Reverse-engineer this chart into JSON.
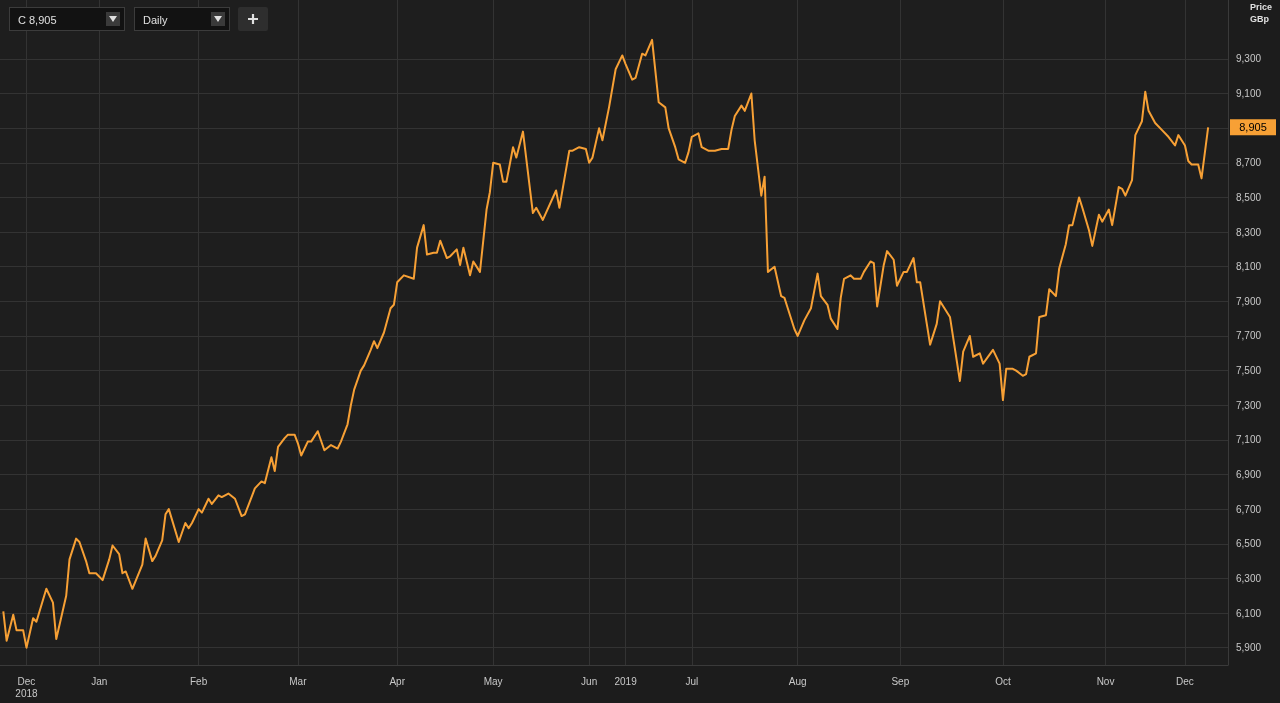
{
  "chart_data": {
    "type": "line",
    "ylabel": "Price\nGBp",
    "grid": true,
    "marker": "none",
    "xlim": [
      "2018-12-17",
      "2019-12-23"
    ],
    "xticks": [
      {
        "value": "2018-12-25",
        "label": "Dec\n2018"
      },
      {
        "value": "2019-01-16",
        "label": "Jan"
      },
      {
        "value": "2019-02-15",
        "label": "Feb"
      },
      {
        "value": "2019-03-17",
        "label": "Mar"
      },
      {
        "value": "2019-04-16",
        "label": "Apr"
      },
      {
        "value": "2019-05-15",
        "label": "May"
      },
      {
        "value": "2019-06-13",
        "label": "Jun"
      },
      {
        "value": "2019-06-24",
        "label": "2019"
      },
      {
        "value": "2019-07-14",
        "label": "Jul"
      },
      {
        "value": "2019-08-15",
        "label": "Aug"
      },
      {
        "value": "2019-09-15",
        "label": "Sep"
      },
      {
        "value": "2019-10-16",
        "label": "Oct"
      },
      {
        "value": "2019-11-16",
        "label": "Nov"
      },
      {
        "value": "2019-12-10",
        "label": "Dec"
      }
    ],
    "ylim": [
      5800,
      9640
    ],
    "yticks": [
      {
        "value": 5900,
        "label": "5,900"
      },
      {
        "value": 6100,
        "label": "6,100"
      },
      {
        "value": 6300,
        "label": "6,300"
      },
      {
        "value": 6500,
        "label": "6,500"
      },
      {
        "value": 6700,
        "label": "6,700"
      },
      {
        "value": 6900,
        "label": "6,900"
      },
      {
        "value": 7100,
        "label": "7,100"
      },
      {
        "value": 7300,
        "label": "7,300"
      },
      {
        "value": 7500,
        "label": "7,500"
      },
      {
        "value": 7700,
        "label": "7,700"
      },
      {
        "value": 7900,
        "label": "7,900"
      },
      {
        "value": 8100,
        "label": "8,100"
      },
      {
        "value": 8300,
        "label": "8,300"
      },
      {
        "value": 8500,
        "label": "8,500"
      },
      {
        "value": 8700,
        "label": "8,700"
      },
      {
        "value": 8900,
        "label": null
      },
      {
        "value": 9100,
        "label": "9,100"
      },
      {
        "value": 9300,
        "label": "9,300"
      }
    ],
    "annotations": [
      "C 8,905",
      "Daily",
      {
        "text": "8,905",
        "x": "2019-12-17",
        "y": 8905
      }
    ],
    "series": [
      {
        "color": "#f7a035",
        "x": [
          "2018-12-18",
          "2018-12-19",
          "2018-12-21",
          "2018-12-22",
          "2018-12-24",
          "2018-12-25",
          "2018-12-27",
          "2018-12-28",
          "2018-12-31",
          "2019-01-02",
          "2019-01-03",
          "2019-01-06",
          "2019-01-07",
          "2019-01-09",
          "2019-01-10",
          "2019-01-12",
          "2019-01-13",
          "2019-01-15",
          "2019-01-17",
          "2019-01-19",
          "2019-01-20",
          "2019-01-22",
          "2019-01-23",
          "2019-01-24",
          "2019-01-26",
          "2019-01-29",
          "2019-01-30",
          "2019-02-01",
          "2019-02-02",
          "2019-02-04",
          "2019-02-05",
          "2019-02-06",
          "2019-02-09",
          "2019-02-11",
          "2019-02-12",
          "2019-02-13",
          "2019-02-15",
          "2019-02-16",
          "2019-02-18",
          "2019-02-19",
          "2019-02-21",
          "2019-02-22",
          "2019-02-24",
          "2019-02-26",
          "2019-02-28",
          "2019-03-01",
          "2019-03-03",
          "2019-03-04",
          "2019-03-06",
          "2019-03-07",
          "2019-03-09",
          "2019-03-10",
          "2019-03-11",
          "2019-03-13",
          "2019-03-14",
          "2019-03-16",
          "2019-03-17",
          "2019-03-18",
          "2019-03-20",
          "2019-03-21",
          "2019-03-23",
          "2019-03-25",
          "2019-03-27",
          "2019-03-29",
          "2019-03-30",
          "2019-04-01",
          "2019-04-02",
          "2019-04-03",
          "2019-04-05",
          "2019-04-06",
          "2019-04-08",
          "2019-04-09",
          "2019-04-10",
          "2019-04-12",
          "2019-04-14",
          "2019-04-15",
          "2019-04-16",
          "2019-04-18",
          "2019-04-21",
          "2019-04-22",
          "2019-04-24",
          "2019-04-25",
          "2019-04-27",
          "2019-04-28",
          "2019-04-29",
          "2019-05-01",
          "2019-05-02",
          "2019-05-04",
          "2019-05-05",
          "2019-05-06",
          "2019-05-08",
          "2019-05-09",
          "2019-05-11",
          "2019-05-13",
          "2019-05-14",
          "2019-05-15",
          "2019-05-17",
          "2019-05-18",
          "2019-05-19",
          "2019-05-21",
          "2019-05-22",
          "2019-05-24",
          "2019-05-27",
          "2019-05-28",
          "2019-05-30",
          "2019-06-03",
          "2019-06-04",
          "2019-06-07",
          "2019-06-08",
          "2019-06-10",
          "2019-06-12",
          "2019-06-13",
          "2019-06-14",
          "2019-06-16",
          "2019-06-17",
          "2019-06-19",
          "2019-06-21",
          "2019-06-23",
          "2019-06-24",
          "2019-06-26",
          "2019-06-27",
          "2019-06-29",
          "2019-06-30",
          "2019-07-02",
          "2019-07-04",
          "2019-07-06",
          "2019-07-07",
          "2019-07-09",
          "2019-07-10",
          "2019-07-12",
          "2019-07-13",
          "2019-07-14",
          "2019-07-16",
          "2019-07-17",
          "2019-07-19",
          "2019-07-21",
          "2019-07-23",
          "2019-07-25",
          "2019-07-26",
          "2019-07-27",
          "2019-07-29",
          "2019-07-30",
          "2019-08-01",
          "2019-08-02",
          "2019-08-04",
          "2019-08-05",
          "2019-08-06",
          "2019-08-08",
          "2019-08-10",
          "2019-08-11",
          "2019-08-12",
          "2019-08-14",
          "2019-08-15",
          "2019-08-17",
          "2019-08-19",
          "2019-08-21",
          "2019-08-22",
          "2019-08-24",
          "2019-08-25",
          "2019-08-27",
          "2019-08-28",
          "2019-08-29",
          "2019-08-31",
          "2019-09-01",
          "2019-09-03",
          "2019-09-04",
          "2019-09-06",
          "2019-09-07",
          "2019-09-08",
          "2019-09-10",
          "2019-09-11",
          "2019-09-13",
          "2019-09-14",
          "2019-09-16",
          "2019-09-17",
          "2019-09-19",
          "2019-09-20",
          "2019-09-21",
          "2019-09-23",
          "2019-09-24",
          "2019-09-26",
          "2019-09-27",
          "2019-09-30",
          "2019-10-03",
          "2019-10-04",
          "2019-10-06",
          "2019-10-07",
          "2019-10-09",
          "2019-10-10",
          "2019-10-13",
          "2019-10-15",
          "2019-10-16",
          "2019-10-17",
          "2019-10-19",
          "2019-10-20",
          "2019-10-22",
          "2019-10-23",
          "2019-10-24",
          "2019-10-26",
          "2019-10-27",
          "2019-10-29",
          "2019-10-30",
          "2019-11-01",
          "2019-11-02",
          "2019-11-04",
          "2019-11-05",
          "2019-11-06",
          "2019-11-08",
          "2019-11-09",
          "2019-11-11",
          "2019-11-12",
          "2019-11-14",
          "2019-11-15",
          "2019-11-17",
          "2019-11-18",
          "2019-11-20",
          "2019-11-21",
          "2019-11-22",
          "2019-11-24",
          "2019-11-25",
          "2019-11-27",
          "2019-11-28",
          "2019-11-29",
          "2019-12-01",
          "2019-12-03",
          "2019-12-05",
          "2019-12-07",
          "2019-12-08",
          "2019-12-10",
          "2019-12-11",
          "2019-12-12",
          "2019-12-14",
          "2019-12-15",
          "2019-12-17"
        ],
        "values": [
          6110,
          5940,
          6090,
          6000,
          6000,
          5900,
          6070,
          6050,
          6240,
          6160,
          5950,
          6200,
          6410,
          6530,
          6510,
          6400,
          6330,
          6330,
          6290,
          6410,
          6490,
          6440,
          6330,
          6340,
          6240,
          6380,
          6530,
          6400,
          6430,
          6520,
          6670,
          6700,
          6510,
          6620,
          6590,
          6620,
          6700,
          6680,
          6760,
          6730,
          6780,
          6770,
          6790,
          6760,
          6660,
          6670,
          6770,
          6820,
          6860,
          6850,
          7000,
          6920,
          7060,
          7110,
          7130,
          7130,
          7080,
          7010,
          7090,
          7090,
          7150,
          7040,
          7070,
          7050,
          7090,
          7190,
          7300,
          7390,
          7500,
          7530,
          7620,
          7670,
          7630,
          7720,
          7860,
          7880,
          8010,
          8050,
          8030,
          8210,
          8340,
          8170,
          8180,
          8180,
          8250,
          8150,
          8160,
          8200,
          8110,
          8210,
          8050,
          8130,
          8070,
          8430,
          8530,
          8700,
          8690,
          8590,
          8590,
          8790,
          8730,
          8880,
          8410,
          8440,
          8370,
          8540,
          8440,
          8770,
          8770,
          8790,
          8780,
          8700,
          8730,
          8900,
          8830,
          9020,
          9240,
          9320,
          9270,
          9180,
          9190,
          9330,
          9320,
          9410,
          9050,
          9020,
          8900,
          8790,
          8720,
          8700,
          8760,
          8850,
          8870,
          8790,
          8770,
          8770,
          8780,
          8780,
          8890,
          8970,
          9030,
          9000,
          9100,
          8830,
          8510,
          8620,
          8070,
          8100,
          7930,
          7920,
          7860,
          7740,
          7700,
          7790,
          7860,
          8060,
          7930,
          7880,
          7800,
          7740,
          7920,
          8030,
          8050,
          8030,
          8030,
          8070,
          8130,
          8120,
          7870,
          8110,
          8190,
          8140,
          7990,
          8070,
          8070,
          8150,
          8010,
          8010,
          7770,
          7650,
          7770,
          7900,
          7810,
          7440,
          7610,
          7700,
          7580,
          7600,
          7540,
          7620,
          7540,
          7330,
          7510,
          7510,
          7500,
          7470,
          7480,
          7580,
          7600,
          7810,
          7820,
          7970,
          7930,
          8090,
          8230,
          8340,
          8340,
          8500,
          8440,
          8310,
          8220,
          8400,
          8360,
          8430,
          8340,
          8560,
          8550,
          8510,
          8600,
          8860,
          8940,
          9110,
          9000,
          8930,
          8890,
          8850,
          8800,
          8860,
          8800,
          8710,
          8690,
          8690,
          8610,
          8905
        ]
      }
    ]
  }
}
